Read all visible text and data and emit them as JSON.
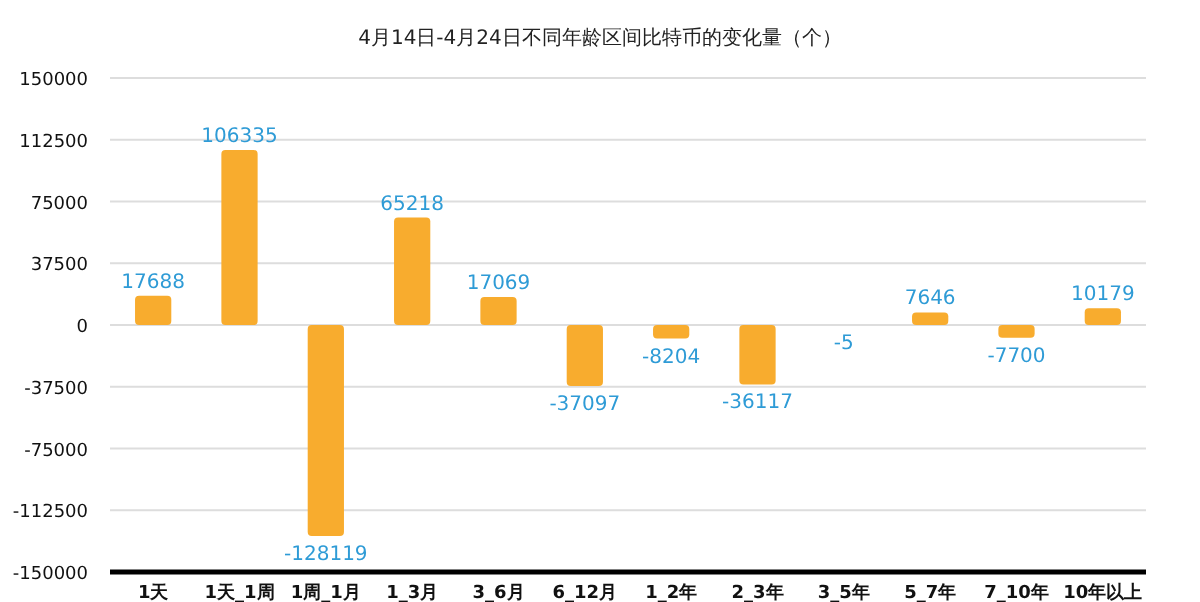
{
  "chart_data": {
    "type": "bar",
    "title": "4月14日-4月24日不同年龄区间比特币的变化量（个）",
    "categories": [
      "1天",
      "1天_1周",
      "1周_1月",
      "1_3月",
      "3_6月",
      "6_12月",
      "1_2年",
      "2_3年",
      "3_5年",
      "5_7年",
      "7_10年",
      "10年以上"
    ],
    "values": [
      17688,
      106335,
      -128119,
      65218,
      17069,
      -37097,
      -8204,
      -36117,
      -5,
      7646,
      -7700,
      10179
    ],
    "color": "#f8ac2e",
    "ylim": [
      -150000,
      150000
    ],
    "yticks": [
      -150000,
      -112500,
      -75000,
      -37500,
      0,
      37500,
      75000,
      112500,
      150000
    ],
    "grid": "y",
    "data_labels": true
  }
}
